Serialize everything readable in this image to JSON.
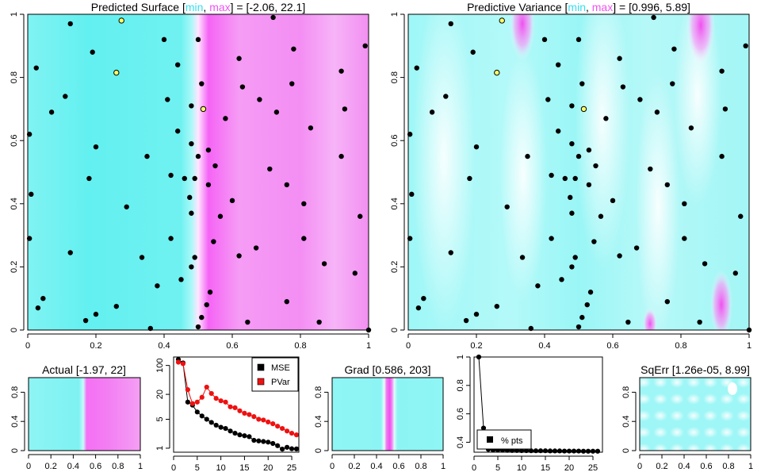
{
  "colors": {
    "low": "#5ef3f3",
    "mid": "#e8fbfb",
    "high": "#f24ff2",
    "min_word": "#35dfee",
    "max_word": "#ee55ee",
    "highlight_point": "#ffff66",
    "mse": "#000000",
    "pvar": "#ee1111"
  },
  "words": {
    "min": "min",
    "max": "max",
    "sep": ", ",
    "open": " [",
    "close": "] = "
  },
  "panels": {
    "predicted": {
      "title": "Predicted Surface",
      "range": "[-2.06, 22.1]"
    },
    "variance": {
      "title": "Predictive Variance",
      "range": "[0.996, 5.89]"
    },
    "actual": {
      "title": "Actual [-1.97, 22]"
    },
    "grad": {
      "title": "Grad [0.586, 203]"
    },
    "sqerr": {
      "title": "SqErr [1.26e-05, 8.99]"
    }
  },
  "chart_data": [
    {
      "id": "predicted-surface",
      "type": "heatmap",
      "title": "Predicted Surface [min, max] = [-2.06, 22.1]",
      "xlim": [
        0,
        1
      ],
      "ylim": [
        0,
        1
      ],
      "x_ticks": [
        0.0,
        0.2,
        0.4,
        0.6,
        0.8,
        1.0
      ],
      "y_ticks": [
        0.0,
        0.2,
        0.4,
        0.6,
        0.8,
        1.0
      ],
      "value_range": [
        -2.06,
        22.1
      ],
      "surface": "step: low (cyan) for x < 0.5, high (magenta) for x > 0.5"
    },
    {
      "id": "predictive-variance",
      "type": "heatmap",
      "title": "Predictive Variance [min, max] = [0.996, 5.89]",
      "xlim": [
        0,
        1
      ],
      "ylim": [
        0,
        1
      ],
      "x_ticks": [
        0.0,
        0.2,
        0.4,
        0.6,
        0.8,
        1.0
      ],
      "y_ticks": [
        0.0,
        0.2,
        0.4,
        0.6,
        0.8,
        1.0
      ],
      "value_range": [
        0.996,
        5.89
      ]
    },
    {
      "id": "design-points",
      "type": "scatter",
      "note": "same design shown on both large panels",
      "points": [
        [
          0.125,
          0.97
        ],
        [
          0.4,
          0.92
        ],
        [
          0.5,
          0.92
        ],
        [
          0.72,
          0.99
        ],
        [
          0.99,
          0.9
        ],
        [
          0.025,
          0.83
        ],
        [
          0.19,
          0.88
        ],
        [
          0.44,
          0.84
        ],
        [
          0.62,
          0.86
        ],
        [
          0.78,
          0.89
        ],
        [
          0.92,
          0.82
        ],
        [
          0.51,
          0.78
        ],
        [
          0.63,
          0.77
        ],
        [
          0.68,
          0.73
        ],
        [
          0.775,
          0.78
        ],
        [
          0.11,
          0.74
        ],
        [
          0.41,
          0.73
        ],
        [
          0.07,
          0.69
        ],
        [
          0.48,
          0.71
        ],
        [
          0.58,
          0.67
        ],
        [
          0.73,
          0.69
        ],
        [
          0.93,
          0.7
        ],
        [
          0.005,
          0.62
        ],
        [
          0.44,
          0.63
        ],
        [
          0.2,
          0.58
        ],
        [
          0.48,
          0.59
        ],
        [
          0.53,
          0.57
        ],
        [
          0.5,
          0.55
        ],
        [
          0.83,
          0.64
        ],
        [
          0.55,
          0.52
        ],
        [
          0.35,
          0.55
        ],
        [
          0.42,
          0.49
        ],
        [
          0.71,
          0.51
        ],
        [
          0.92,
          0.55
        ],
        [
          0.18,
          0.48
        ],
        [
          0.46,
          0.48
        ],
        [
          0.49,
          0.48
        ],
        [
          0.53,
          0.46
        ],
        [
          0.76,
          0.46
        ],
        [
          0.01,
          0.43
        ],
        [
          0.29,
          0.39
        ],
        [
          0.475,
          0.42
        ],
        [
          0.48,
          0.37
        ],
        [
          0.565,
          0.36
        ],
        [
          0.6,
          0.41
        ],
        [
          0.81,
          0.4
        ],
        [
          0.975,
          0.36
        ],
        [
          0.005,
          0.29
        ],
        [
          0.42,
          0.29
        ],
        [
          0.545,
          0.28
        ],
        [
          0.125,
          0.245
        ],
        [
          0.335,
          0.23
        ],
        [
          0.49,
          0.23
        ],
        [
          0.62,
          0.235
        ],
        [
          0.67,
          0.26
        ],
        [
          0.81,
          0.29
        ],
        [
          0.87,
          0.21
        ],
        [
          0.48,
          0.2
        ],
        [
          0.45,
          0.16
        ],
        [
          0.96,
          0.18
        ],
        [
          0.045,
          0.1
        ],
        [
          0.38,
          0.14
        ],
        [
          0.535,
          0.12
        ],
        [
          0.525,
          0.08
        ],
        [
          0.76,
          0.09
        ],
        [
          0.03,
          0.07
        ],
        [
          0.26,
          0.075
        ],
        [
          0.2,
          0.05
        ],
        [
          0.17,
          0.03
        ],
        [
          0.51,
          0.04
        ],
        [
          0.645,
          0.025
        ],
        [
          0.855,
          0.025
        ],
        [
          0.36,
          0.005
        ],
        [
          0.5,
          0.01
        ],
        [
          1.0,
          0.0
        ]
      ],
      "highlighted": [
        [
          0.275,
          0.98
        ],
        [
          0.26,
          0.815
        ],
        [
          0.515,
          0.7
        ]
      ]
    },
    {
      "id": "actual",
      "type": "heatmap",
      "title": "Actual [-1.97, 22]",
      "xlim": [
        0,
        1
      ],
      "ylim": [
        0,
        1
      ],
      "x_ticks": [
        0.0,
        0.2,
        0.4,
        0.6,
        0.8,
        1.0
      ],
      "y_ticks": [
        0.0,
        0.4,
        0.8
      ],
      "value_range": [
        -1.97,
        22
      ]
    },
    {
      "id": "mse-pvar",
      "type": "line",
      "y_scale": "log",
      "xlim": [
        0,
        26.5
      ],
      "ylim": [
        0.8,
        160
      ],
      "x_ticks": [
        0,
        5,
        10,
        15,
        20,
        25
      ],
      "y_ticks": [
        1,
        5,
        20,
        100
      ],
      "legend_position": "top-right",
      "x": [
        1,
        2,
        3,
        4,
        5,
        6,
        7,
        8,
        9,
        10,
        11,
        12,
        13,
        14,
        15,
        16,
        17,
        18,
        19,
        20,
        21,
        22,
        23,
        24,
        25,
        26
      ],
      "series": [
        {
          "name": "MSE",
          "color": "#000000",
          "values": [
            140,
            115,
            13,
            11,
            7.5,
            6.0,
            5.0,
            4.2,
            3.6,
            3.2,
            3.0,
            2.6,
            2.3,
            2.1,
            2.0,
            1.9,
            1.55,
            1.5,
            1.45,
            1.4,
            1.3,
            1.15,
            0.95,
            1.05,
            0.97,
            0.96
          ]
        },
        {
          "name": "PVar",
          "color": "#ee1111",
          "values": [
            120,
            110,
            26,
            12,
            13,
            17,
            30,
            21,
            16,
            14,
            13,
            10,
            9.5,
            8.0,
            7.0,
            6.5,
            5.8,
            5.0,
            4.8,
            4.3,
            3.9,
            3.4,
            3.0,
            2.6,
            2.3,
            2.1
          ]
        }
      ]
    },
    {
      "id": "grad",
      "type": "heatmap",
      "title": "Grad [0.586, 203]",
      "xlim": [
        0,
        1
      ],
      "ylim": [
        0,
        1
      ],
      "x_ticks": [
        0.0,
        0.2,
        0.4,
        0.6,
        0.8,
        1.0
      ],
      "y_ticks": [
        0.0,
        0.4,
        0.8
      ],
      "value_range": [
        0.586,
        203
      ]
    },
    {
      "id": "pct-pts",
      "type": "line",
      "xlim": [
        0,
        27
      ],
      "ylim": [
        0.33,
        1.0
      ],
      "x_ticks": [
        0,
        5,
        10,
        15,
        20,
        25
      ],
      "y_ticks": [
        0.4,
        0.5,
        0.6,
        0.7,
        0.8,
        0.9,
        1.0
      ],
      "legend_position": "bottom-left",
      "x": [
        1,
        2,
        3,
        4,
        5,
        6,
        7,
        8,
        9,
        10,
        11,
        12,
        13,
        14,
        15,
        16,
        17,
        18,
        19,
        20,
        21,
        22,
        23,
        24,
        25,
        26
      ],
      "series": [
        {
          "name": "% pts",
          "color": "#000000",
          "values": [
            1.0,
            0.5,
            0.35,
            0.345,
            0.345,
            0.344,
            0.343,
            0.342,
            0.342,
            0.341,
            0.341,
            0.34,
            0.34,
            0.34,
            0.34,
            0.339,
            0.339,
            0.339,
            0.338,
            0.338,
            0.338,
            0.338,
            0.337,
            0.337,
            0.337,
            0.337
          ]
        }
      ]
    },
    {
      "id": "sqerr",
      "type": "heatmap",
      "title": "SqErr [1.26e-05, 8.99]",
      "xlim": [
        0,
        1
      ],
      "ylim": [
        0,
        1
      ],
      "x_ticks": [
        0.0,
        0.2,
        0.4,
        0.6,
        0.8,
        1.0
      ],
      "y_ticks": [
        0.0,
        0.4,
        0.8
      ],
      "value_range": [
        1.26e-05,
        8.99
      ]
    }
  ]
}
